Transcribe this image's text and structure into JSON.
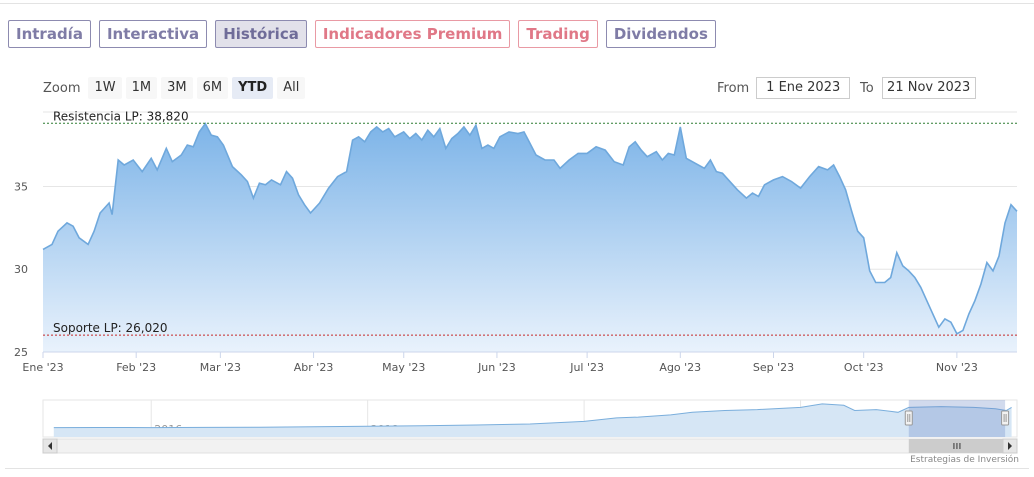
{
  "tabs": [
    {
      "label": "Intradía",
      "style": "normal"
    },
    {
      "label": "Interactiva",
      "style": "normal"
    },
    {
      "label": "Histórica",
      "style": "active"
    },
    {
      "label": "Indicadores Premium",
      "style": "premium"
    },
    {
      "label": "Trading",
      "style": "premium"
    },
    {
      "label": "Dividendos",
      "style": "normal"
    }
  ],
  "range_selector": {
    "zoom_label": "Zoom",
    "buttons": [
      "1W",
      "1M",
      "3M",
      "6M",
      "YTD",
      "All"
    ],
    "selected": "YTD",
    "from_label": "From",
    "from_value": "1 Ene 2023",
    "to_label": "To",
    "to_value": "21 Nov 2023"
  },
  "credits": "Estrategias de Inversión",
  "colors": {
    "line": "#6fa8dc",
    "area_top": "#7db4e8",
    "area_bottom": "#e9f2fc",
    "resistance": "#2e7d32",
    "support": "#c62828",
    "tab_border": "#8d8bb0",
    "tab_premium": "#e07887"
  },
  "chart_data": {
    "type": "area",
    "title": "",
    "xlabel": "",
    "ylabel": "",
    "ylim": [
      25,
      39.5
    ],
    "yticks": [
      25,
      30,
      35
    ],
    "grid": true,
    "xticks": [
      {
        "label": "Ene '23",
        "date": "2023-01-01"
      },
      {
        "label": "Feb '23",
        "date": "2023-02-01"
      },
      {
        "label": "Mar '23",
        "date": "2023-03-01"
      },
      {
        "label": "Abr '23",
        "date": "2023-04-01"
      },
      {
        "label": "May '23",
        "date": "2023-05-01"
      },
      {
        "label": "Jun '23",
        "date": "2023-06-01"
      },
      {
        "label": "Jul '23",
        "date": "2023-07-01"
      },
      {
        "label": "Ago '23",
        "date": "2023-08-01"
      },
      {
        "label": "Sep '23",
        "date": "2023-09-01"
      },
      {
        "label": "Oct '23",
        "date": "2023-10-01"
      },
      {
        "label": "Nov '23",
        "date": "2023-11-01"
      }
    ],
    "x_range": [
      "2023-01-01",
      "2023-11-21"
    ],
    "series": [
      {
        "points": [
          [
            "2023-01-01",
            31.2
          ],
          [
            "2023-01-04",
            31.5
          ],
          [
            "2023-01-06",
            32.3
          ],
          [
            "2023-01-09",
            32.8
          ],
          [
            "2023-01-11",
            32.6
          ],
          [
            "2023-01-13",
            31.9
          ],
          [
            "2023-01-16",
            31.5
          ],
          [
            "2023-01-18",
            32.3
          ],
          [
            "2023-01-20",
            33.4
          ],
          [
            "2023-01-23",
            34.0
          ],
          [
            "2023-01-24",
            33.3
          ],
          [
            "2023-01-26",
            36.6
          ],
          [
            "2023-01-28",
            36.3
          ],
          [
            "2023-01-31",
            36.6
          ],
          [
            "2023-02-03",
            35.9
          ],
          [
            "2023-02-06",
            36.7
          ],
          [
            "2023-02-08",
            36.0
          ],
          [
            "2023-02-11",
            37.3
          ],
          [
            "2023-02-13",
            36.5
          ],
          [
            "2023-02-16",
            36.9
          ],
          [
            "2023-02-18",
            37.5
          ],
          [
            "2023-02-20",
            37.4
          ],
          [
            "2023-02-22",
            38.3
          ],
          [
            "2023-02-24",
            38.8
          ],
          [
            "2023-02-26",
            38.1
          ],
          [
            "2023-02-28",
            38.0
          ],
          [
            "2023-03-02",
            37.5
          ],
          [
            "2023-03-05",
            36.2
          ],
          [
            "2023-03-08",
            35.7
          ],
          [
            "2023-03-10",
            35.3
          ],
          [
            "2023-03-12",
            34.3
          ],
          [
            "2023-03-14",
            35.2
          ],
          [
            "2023-03-16",
            35.1
          ],
          [
            "2023-03-18",
            35.4
          ],
          [
            "2023-03-21",
            35.1
          ],
          [
            "2023-03-23",
            35.9
          ],
          [
            "2023-03-25",
            35.5
          ],
          [
            "2023-03-27",
            34.5
          ],
          [
            "2023-03-29",
            33.9
          ],
          [
            "2023-03-31",
            33.4
          ],
          [
            "2023-04-03",
            34.0
          ],
          [
            "2023-04-06",
            34.9
          ],
          [
            "2023-04-09",
            35.6
          ],
          [
            "2023-04-12",
            35.9
          ],
          [
            "2023-04-14",
            37.8
          ],
          [
            "2023-04-16",
            38.0
          ],
          [
            "2023-04-18",
            37.7
          ],
          [
            "2023-04-20",
            38.3
          ],
          [
            "2023-04-22",
            38.6
          ],
          [
            "2023-04-24",
            38.3
          ],
          [
            "2023-04-26",
            38.5
          ],
          [
            "2023-04-28",
            38.0
          ],
          [
            "2023-05-01",
            38.3
          ],
          [
            "2023-05-03",
            37.9
          ],
          [
            "2023-05-05",
            38.2
          ],
          [
            "2023-05-07",
            37.8
          ],
          [
            "2023-05-09",
            38.4
          ],
          [
            "2023-05-11",
            38.0
          ],
          [
            "2023-05-13",
            38.5
          ],
          [
            "2023-05-15",
            37.3
          ],
          [
            "2023-05-17",
            37.9
          ],
          [
            "2023-05-19",
            38.2
          ],
          [
            "2023-05-21",
            38.6
          ],
          [
            "2023-05-23",
            38.1
          ],
          [
            "2023-05-25",
            38.7
          ],
          [
            "2023-05-27",
            37.3
          ],
          [
            "2023-05-29",
            37.5
          ],
          [
            "2023-05-31",
            37.3
          ],
          [
            "2023-06-02",
            38.0
          ],
          [
            "2023-06-05",
            38.3
          ],
          [
            "2023-06-08",
            38.2
          ],
          [
            "2023-06-10",
            38.3
          ],
          [
            "2023-06-12",
            37.6
          ],
          [
            "2023-06-14",
            36.9
          ],
          [
            "2023-06-17",
            36.6
          ],
          [
            "2023-06-20",
            36.6
          ],
          [
            "2023-06-22",
            36.1
          ],
          [
            "2023-06-25",
            36.6
          ],
          [
            "2023-06-28",
            37.0
          ],
          [
            "2023-07-01",
            37.0
          ],
          [
            "2023-07-04",
            37.4
          ],
          [
            "2023-07-07",
            37.2
          ],
          [
            "2023-07-10",
            36.5
          ],
          [
            "2023-07-13",
            36.3
          ],
          [
            "2023-07-15",
            37.4
          ],
          [
            "2023-07-17",
            37.7
          ],
          [
            "2023-07-19",
            37.2
          ],
          [
            "2023-07-21",
            36.8
          ],
          [
            "2023-07-24",
            37.1
          ],
          [
            "2023-07-26",
            36.6
          ],
          [
            "2023-07-28",
            37.0
          ],
          [
            "2023-07-30",
            36.9
          ],
          [
            "2023-08-01",
            38.6
          ],
          [
            "2023-08-03",
            36.7
          ],
          [
            "2023-08-06",
            36.4
          ],
          [
            "2023-08-09",
            36.1
          ],
          [
            "2023-08-11",
            36.6
          ],
          [
            "2023-08-13",
            35.9
          ],
          [
            "2023-08-15",
            35.8
          ],
          [
            "2023-08-18",
            35.2
          ],
          [
            "2023-08-20",
            34.8
          ],
          [
            "2023-08-23",
            34.3
          ],
          [
            "2023-08-25",
            34.6
          ],
          [
            "2023-08-27",
            34.4
          ],
          [
            "2023-08-29",
            35.1
          ],
          [
            "2023-09-01",
            35.4
          ],
          [
            "2023-09-04",
            35.6
          ],
          [
            "2023-09-07",
            35.3
          ],
          [
            "2023-09-10",
            34.9
          ],
          [
            "2023-09-13",
            35.6
          ],
          [
            "2023-09-16",
            36.2
          ],
          [
            "2023-09-19",
            36.0
          ],
          [
            "2023-09-21",
            36.3
          ],
          [
            "2023-09-23",
            35.6
          ],
          [
            "2023-09-25",
            34.8
          ],
          [
            "2023-09-27",
            33.5
          ],
          [
            "2023-09-29",
            32.3
          ],
          [
            "2023-10-01",
            31.9
          ],
          [
            "2023-10-03",
            29.9
          ],
          [
            "2023-10-05",
            29.2
          ],
          [
            "2023-10-08",
            29.2
          ],
          [
            "2023-10-10",
            29.5
          ],
          [
            "2023-10-12",
            31.0
          ],
          [
            "2023-10-14",
            30.2
          ],
          [
            "2023-10-16",
            29.9
          ],
          [
            "2023-10-18",
            29.5
          ],
          [
            "2023-10-20",
            28.9
          ],
          [
            "2023-10-22",
            28.1
          ],
          [
            "2023-10-24",
            27.3
          ],
          [
            "2023-10-26",
            26.5
          ],
          [
            "2023-10-28",
            27.0
          ],
          [
            "2023-10-30",
            26.8
          ],
          [
            "2023-11-01",
            26.1
          ],
          [
            "2023-11-03",
            26.3
          ],
          [
            "2023-11-05",
            27.3
          ],
          [
            "2023-11-07",
            28.1
          ],
          [
            "2023-11-09",
            29.1
          ],
          [
            "2023-11-11",
            30.4
          ],
          [
            "2023-11-13",
            29.9
          ],
          [
            "2023-11-15",
            30.8
          ],
          [
            "2023-11-17",
            32.8
          ],
          [
            "2023-11-19",
            33.9
          ],
          [
            "2023-11-21",
            33.5
          ]
        ]
      }
    ],
    "annotations": [
      {
        "label": "Resistencia LP: 38,820",
        "y": 38.82,
        "style": "resistance"
      },
      {
        "label": "Soporte LP: 26,020",
        "y": 26.02,
        "style": "support"
      }
    ],
    "navigator": {
      "type": "area",
      "x_range": [
        2015,
        2024
      ],
      "xticks": [
        "2016",
        "2018",
        "2020",
        "2022"
      ],
      "selected_range": [
        "2023-01-01",
        "2023-11-21"
      ],
      "values": [
        [
          2015.1,
          8.5
        ],
        [
          2015.5,
          8.6
        ],
        [
          2016.0,
          8.4
        ],
        [
          2016.5,
          8.7
        ],
        [
          2017.0,
          8.9
        ],
        [
          2017.5,
          9.4
        ],
        [
          2018.0,
          10.0
        ],
        [
          2018.5,
          10.6
        ],
        [
          2019.0,
          11.4
        ],
        [
          2019.5,
          12.6
        ],
        [
          2020.0,
          15.5
        ],
        [
          2020.3,
          19.5
        ],
        [
          2020.5,
          20.5
        ],
        [
          2020.8,
          23.0
        ],
        [
          2021.0,
          26.0
        ],
        [
          2021.3,
          28.0
        ],
        [
          2021.6,
          29.0
        ],
        [
          2022.0,
          31.5
        ],
        [
          2022.2,
          35.5
        ],
        [
          2022.4,
          34.0
        ],
        [
          2022.5,
          28.0
        ],
        [
          2022.7,
          29.0
        ],
        [
          2022.9,
          26.0
        ],
        [
          2023.0,
          31.5
        ],
        [
          2023.3,
          32.5
        ],
        [
          2023.6,
          31.5
        ],
        [
          2023.8,
          30.0
        ],
        [
          2023.9,
          28.0
        ],
        [
          2023.95,
          31.5
        ]
      ]
    }
  }
}
